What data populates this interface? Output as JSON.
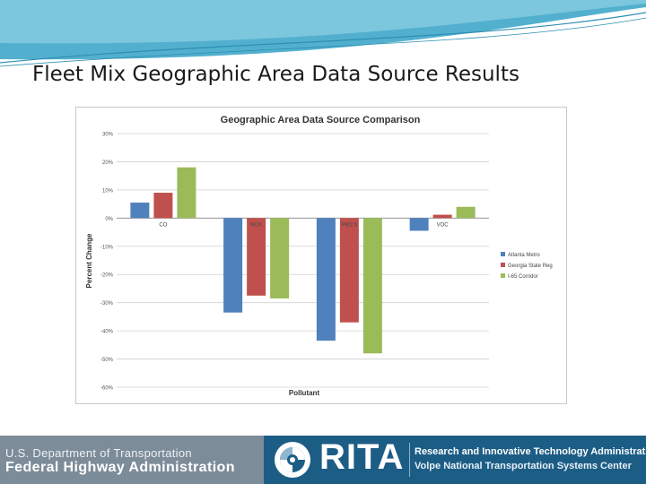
{
  "slide": {
    "title": "Fleet Mix Geographic Area Data Source Results"
  },
  "footer": {
    "dot_text": "U.S. Department of Transportation",
    "fhwa_text": "Federal Highway Administration",
    "rita_word": "RITA",
    "rita_line1": "Research and Innovative Technology Administration",
    "rita_line2": "Volpe National Transportation Systems Center"
  },
  "colors": {
    "header_teal": "#3fa7c9",
    "footer_gray": "#7d8c99",
    "footer_blue": "#1c5d86"
  },
  "chart_data": {
    "type": "bar",
    "title": "Geographic Area Data Source Comparison",
    "xlabel": "Pollutant",
    "ylabel": "Percent Change",
    "categories": [
      "CO",
      "NOX",
      "PM2.5",
      "VOC"
    ],
    "series": [
      {
        "name": "Atlanta Metro",
        "color": "#4f81bd",
        "values": [
          5.5,
          -33.5,
          -43.5,
          -4.5
        ]
      },
      {
        "name": "Georgia State Reg",
        "color": "#c0504d",
        "values": [
          9,
          -27.5,
          -37,
          1.2
        ]
      },
      {
        "name": "I-65 Corridor",
        "color": "#9bbb59",
        "values": [
          18,
          -28.5,
          -48,
          4
        ]
      }
    ],
    "ylim": [
      -60,
      30
    ],
    "yticks": [
      30,
      20,
      10,
      0,
      -10,
      -20,
      -30,
      -40,
      -50,
      -60
    ],
    "ytick_labels": [
      "30%",
      "20%",
      "10%",
      "0%",
      "-10%",
      "-20%",
      "-30%",
      "-40%",
      "-50%",
      "-60%"
    ],
    "grid": true,
    "legend_position": "right"
  }
}
